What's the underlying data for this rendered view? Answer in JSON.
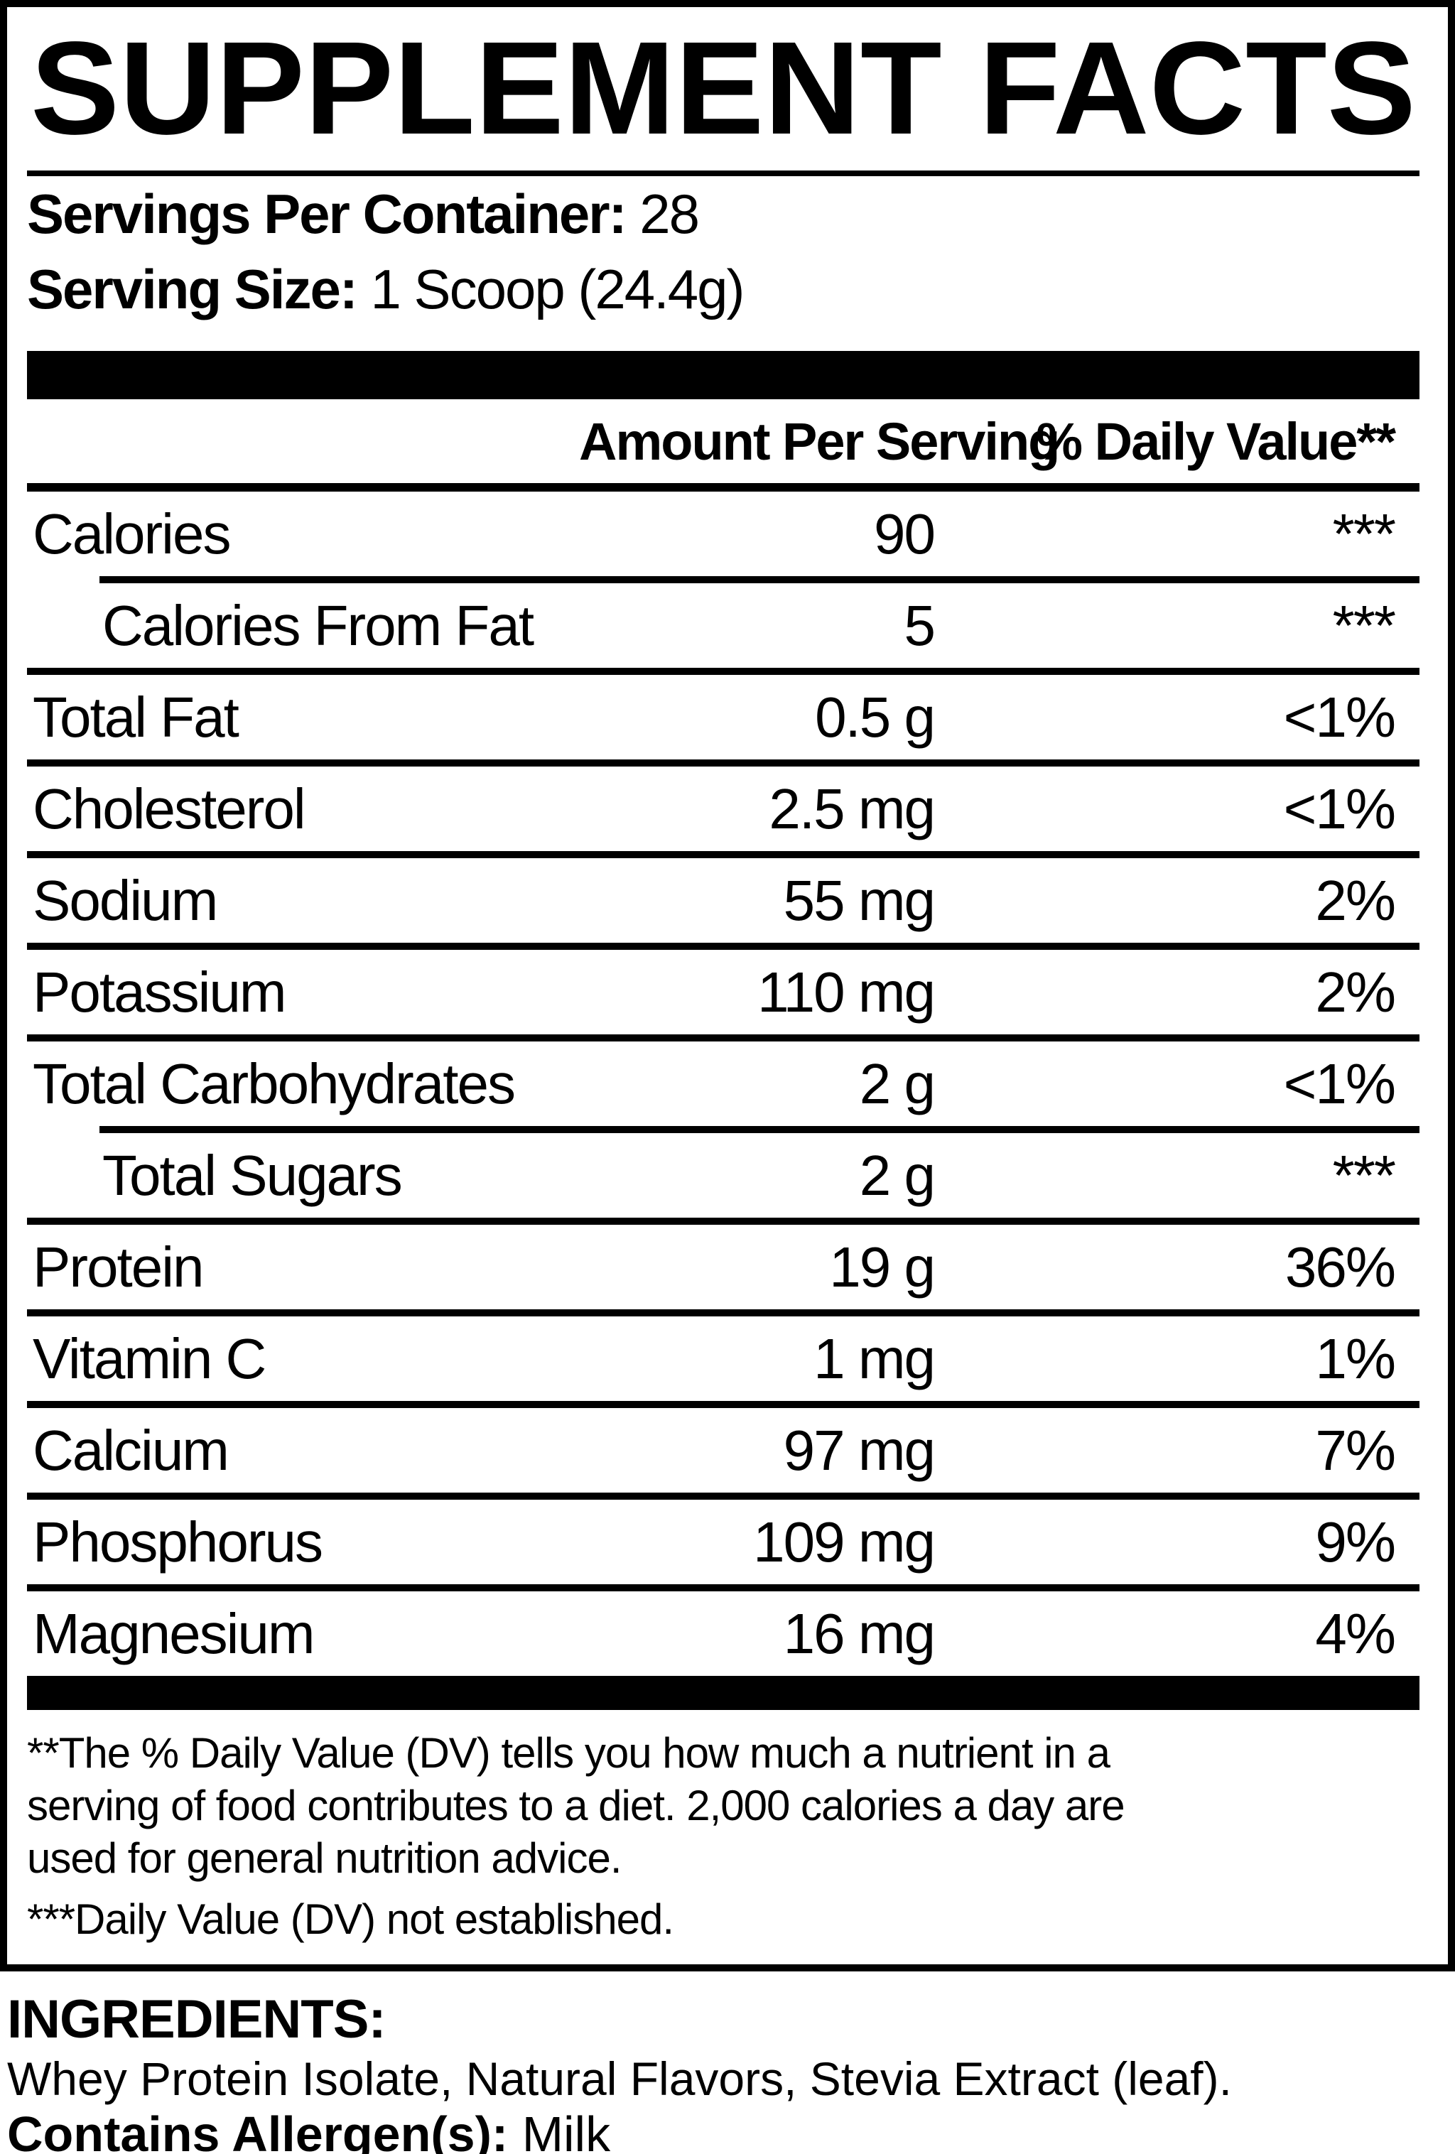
{
  "colors": {
    "ink": "#000000",
    "paper": "#ffffff"
  },
  "title": "SUPPLEMENT FACTS",
  "serving_info": {
    "servings_per_container_label": "Servings Per Container:",
    "servings_per_container_value": "28",
    "serving_size_label": "Serving Size:",
    "serving_size_value": "1 Scoop (24.4g)"
  },
  "table": {
    "header": {
      "amount": "Amount Per Serving",
      "daily_value": "% Daily Value**"
    },
    "rows": [
      {
        "label": "Calories",
        "amount": "90",
        "dv": "***",
        "indent": false
      },
      {
        "label": "Calories From Fat",
        "amount": "5",
        "dv": "***",
        "indent": true
      },
      {
        "label": "Total Fat",
        "amount": "0.5 g",
        "dv": "<1%",
        "indent": false
      },
      {
        "label": "Cholesterol",
        "amount": "2.5 mg",
        "dv": "<1%",
        "indent": false
      },
      {
        "label": "Sodium",
        "amount": "55 mg",
        "dv": "2%",
        "indent": false
      },
      {
        "label": "Potassium",
        "amount": "110 mg",
        "dv": "2%",
        "indent": false
      },
      {
        "label": "Total Carbohydrates",
        "amount": "2 g",
        "dv": "<1%",
        "indent": false
      },
      {
        "label": "Total Sugars",
        "amount": "2 g",
        "dv": "***",
        "indent": true
      },
      {
        "label": "Protein",
        "amount": "19 g",
        "dv": "36%",
        "indent": false
      },
      {
        "label": "Vitamin C",
        "amount": "1 mg",
        "dv": "1%",
        "indent": false
      },
      {
        "label": "Calcium",
        "amount": "97 mg",
        "dv": "7%",
        "indent": false
      },
      {
        "label": "Phosphorus",
        "amount": "109 mg",
        "dv": "9%",
        "indent": false
      },
      {
        "label": "Magnesium",
        "amount": "16 mg",
        "dv": "4%",
        "indent": false
      }
    ]
  },
  "footnotes": {
    "lines": [
      "**The % Daily Value (DV) tells you how much a nutrient in a",
      "serving of food contributes to a diet. 2,000 calories a day are",
      "used for general nutrition advice.",
      "***Daily Value (DV) not established."
    ]
  },
  "ingredients": {
    "heading": "INGREDIENTS:",
    "list": "Whey Protein Isolate, Natural Flavors, Stevia Extract (leaf).",
    "allergen_label": "Contains Allergen(s):",
    "allergen_value": "Milk"
  }
}
